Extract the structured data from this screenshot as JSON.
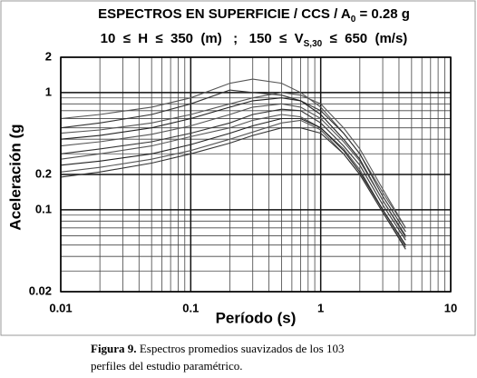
{
  "chart_data": {
    "type": "line",
    "title": [
      "ESPECTROS EN SUPERFICIE / CCS / A",
      "0",
      " = 0.28 g"
    ],
    "subtitle": [
      "10  ≤  H  ≤  350  (m)   ;   150  ≤  V",
      "S,30",
      "  ≤  650  (m/s)"
    ],
    "x_label": "Período (s)",
    "y_label": "Aceleración (g",
    "x_log": true,
    "y_log": true,
    "grid": true,
    "xlim": [
      0.01,
      10
    ],
    "ylim": [
      0.02,
      2
    ],
    "xticks": [
      0.01,
      0.1,
      1,
      10
    ],
    "yticks": [
      0.02,
      0.1,
      0.2,
      1,
      2
    ],
    "x_minor_grid": [
      0.02,
      0.03,
      0.04,
      0.05,
      0.06,
      0.07,
      0.08,
      0.09,
      0.2,
      0.3,
      0.4,
      0.5,
      0.6,
      0.7,
      0.8,
      0.9,
      2,
      3,
      4,
      5,
      6,
      7,
      8,
      9
    ],
    "y_minor_grid": [
      0.03,
      0.04,
      0.05,
      0.06,
      0.07,
      0.08,
      0.09,
      0.3,
      0.4,
      0.5,
      0.6,
      0.7,
      0.8,
      0.9
    ],
    "x": [
      0.01,
      0.02,
      0.05,
      0.1,
      0.2,
      0.3,
      0.5,
      0.7,
      1,
      1.5,
      2,
      3,
      4.5
    ],
    "series": [
      {
        "color": "#555555",
        "values": [
          0.6,
          0.65,
          0.75,
          0.9,
          1.2,
          1.3,
          1.2,
          1.0,
          0.75,
          0.45,
          0.3,
          0.14,
          0.07
        ]
      },
      {
        "color": "#333333",
        "values": [
          0.5,
          0.55,
          0.65,
          0.8,
          1.05,
          1.0,
          0.95,
          0.85,
          0.7,
          0.45,
          0.3,
          0.13,
          0.065
        ]
      },
      {
        "color": "#555555",
        "values": [
          0.45,
          0.48,
          0.55,
          0.65,
          0.8,
          0.9,
          1.0,
          0.95,
          0.8,
          0.5,
          0.33,
          0.15,
          0.07
        ]
      },
      {
        "color": "#222222",
        "values": [
          0.4,
          0.43,
          0.5,
          0.6,
          0.75,
          0.85,
          0.9,
          0.85,
          0.65,
          0.4,
          0.27,
          0.12,
          0.06
        ]
      },
      {
        "color": "#555555",
        "values": [
          0.35,
          0.38,
          0.44,
          0.52,
          0.65,
          0.75,
          0.8,
          0.75,
          0.6,
          0.38,
          0.26,
          0.12,
          0.058
        ]
      },
      {
        "color": "#333333",
        "values": [
          0.3,
          0.33,
          0.38,
          0.45,
          0.55,
          0.65,
          0.72,
          0.7,
          0.55,
          0.35,
          0.24,
          0.11,
          0.055
        ]
      },
      {
        "color": "#555555",
        "values": [
          0.27,
          0.3,
          0.35,
          0.42,
          0.5,
          0.58,
          0.65,
          0.62,
          0.5,
          0.33,
          0.22,
          0.1,
          0.05
        ]
      },
      {
        "color": "#222222",
        "values": [
          0.24,
          0.26,
          0.3,
          0.36,
          0.45,
          0.52,
          0.6,
          0.6,
          0.5,
          0.32,
          0.21,
          0.1,
          0.05
        ]
      },
      {
        "color": "#555555",
        "values": [
          0.21,
          0.23,
          0.27,
          0.32,
          0.4,
          0.46,
          0.55,
          0.58,
          0.48,
          0.3,
          0.2,
          0.095,
          0.048
        ]
      },
      {
        "color": "#333333",
        "values": [
          0.19,
          0.21,
          0.25,
          0.3,
          0.37,
          0.43,
          0.5,
          0.5,
          0.45,
          0.3,
          0.2,
          0.095,
          0.046
        ]
      }
    ],
    "caption": {
      "label": "Figura 9.",
      "lines": [
        " Espectros promedios suavizados de los 103",
        "perfiles del estudio paramétrico."
      ]
    }
  }
}
